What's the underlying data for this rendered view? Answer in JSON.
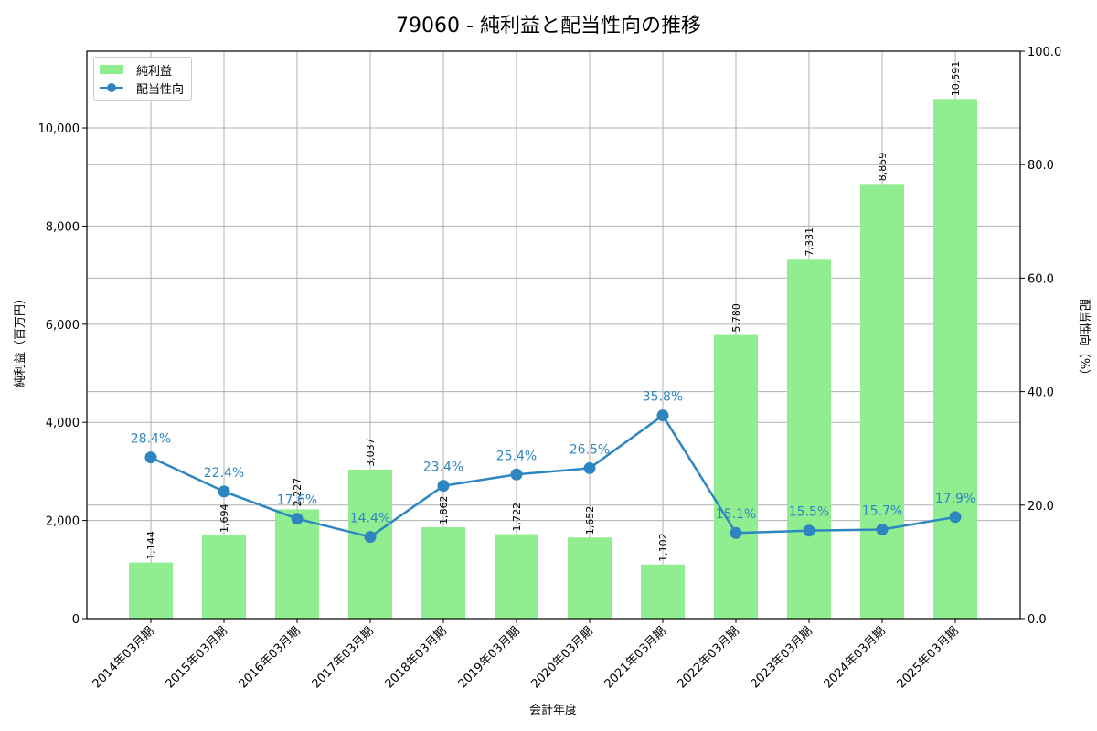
{
  "title": "79060 - 純利益と配当性向の推移",
  "legend": {
    "bar_label": "純利益",
    "line_label": "配当性向"
  },
  "axes": {
    "xlabel": "会計年度",
    "ylabel_left": "純利益（百万円）",
    "ylabel_right": "配当性向（%）",
    "left_ticks": [
      "0",
      "2,000",
      "4,000",
      "6,000",
      "8,000",
      "10,000"
    ],
    "right_ticks": [
      "0.0",
      "20.0",
      "40.0",
      "60.0",
      "80.0",
      "100.0"
    ]
  },
  "colors": {
    "bar": "#90ee90",
    "line": "#2e86c1",
    "grid": "#b0b0b0"
  },
  "chart_data": {
    "type": "bar+line",
    "title": "79060 - 純利益と配当性向の推移",
    "xlabel": "会計年度",
    "ylabel": "純利益（百万円）",
    "ylabel_right": "配当性向（%）",
    "categories": [
      "2014年03月期",
      "2015年03月期",
      "2016年03月期",
      "2017年03月期",
      "2018年03月期",
      "2019年03月期",
      "2020年03月期",
      "2021年03月期",
      "2022年03月期",
      "2023年03月期",
      "2024年03月期",
      "2025年03月期"
    ],
    "series": [
      {
        "name": "純利益",
        "type": "bar",
        "axis": "left",
        "values": [
          1144,
          1694,
          2227,
          3037,
          1862,
          1722,
          1652,
          1102,
          5780,
          7331,
          8859,
          10591
        ],
        "labels": [
          "1,144",
          "1,694",
          "2,227",
          "3,037",
          "1,862",
          "1,722",
          "1,652",
          "1,102",
          "5,780",
          "7,331",
          "8,859",
          "10,591"
        ]
      },
      {
        "name": "配当性向",
        "type": "line",
        "axis": "right",
        "values": [
          28.4,
          22.4,
          17.6,
          14.4,
          23.4,
          25.4,
          26.5,
          35.8,
          15.1,
          15.5,
          15.7,
          17.9
        ],
        "labels": [
          "28.4%",
          "22.4%",
          "17.6%",
          "14.4%",
          "23.4%",
          "25.4%",
          "26.5%",
          "35.8%",
          "15.1%",
          "15.5%",
          "15.7%",
          "17.9%"
        ]
      }
    ],
    "ylim": [
      0,
      11565
    ],
    "ylim_right": [
      0,
      100
    ],
    "grid": true,
    "legend_position": "upper left"
  }
}
